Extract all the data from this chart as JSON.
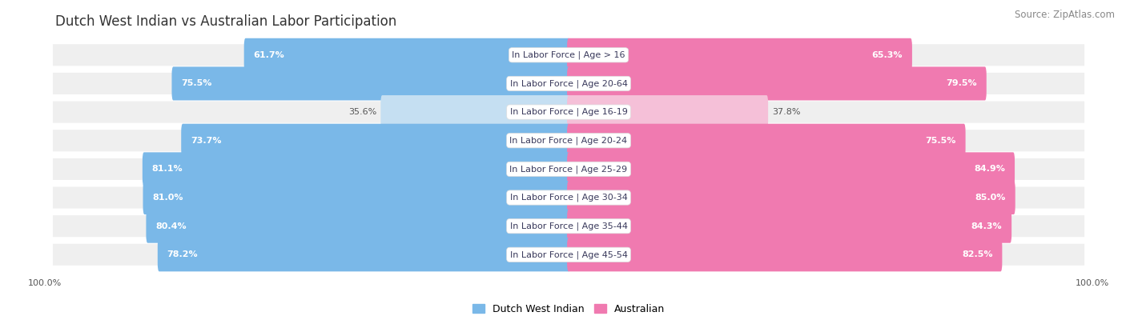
{
  "title": "Dutch West Indian vs Australian Labor Participation",
  "source": "Source: ZipAtlas.com",
  "categories": [
    "In Labor Force | Age > 16",
    "In Labor Force | Age 20-64",
    "In Labor Force | Age 16-19",
    "In Labor Force | Age 20-24",
    "In Labor Force | Age 25-29",
    "In Labor Force | Age 30-34",
    "In Labor Force | Age 35-44",
    "In Labor Force | Age 45-54"
  ],
  "dutch_values": [
    61.7,
    75.5,
    35.6,
    73.7,
    81.1,
    81.0,
    80.4,
    78.2
  ],
  "australian_values": [
    65.3,
    79.5,
    37.8,
    75.5,
    84.9,
    85.0,
    84.3,
    82.5
  ],
  "dutch_color_strong": "#7ab8e8",
  "dutch_color_light": "#c5dff2",
  "australian_color_strong": "#f07ab0",
  "australian_color_light": "#f5c0d8",
  "fig_background": "#ffffff",
  "row_background": "#efefef",
  "row_bg_alt": "#e8e8e8",
  "title_fontsize": 12,
  "source_fontsize": 8.5,
  "label_fontsize": 8,
  "value_fontsize": 8,
  "legend_fontsize": 9,
  "axis_label_fontsize": 8,
  "max_val": 100.0,
  "legend_labels": [
    "Dutch West Indian",
    "Australian"
  ],
  "left_label": "100.0%",
  "right_label": "100.0%"
}
